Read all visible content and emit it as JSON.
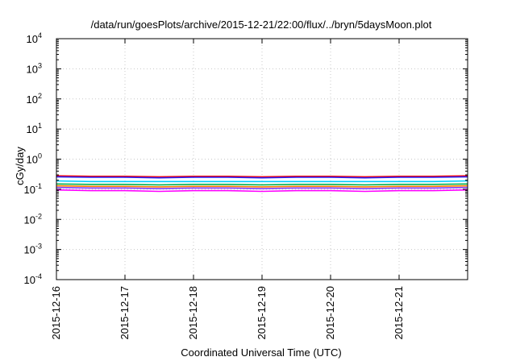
{
  "chart_data": {
    "type": "line",
    "title": "/data/run/goesPlots/archive/2015-12-21/22:00/flux/../bryn/5daysMoon.plot",
    "xlabel": "Coordinated Universal Time (UTC)",
    "ylabel": "cGy/day",
    "yscale": "log",
    "ylim": [
      0.0001,
      10000
    ],
    "xlim": [
      "2015-12-16",
      "2015-12-22"
    ],
    "grid": true,
    "legend": "none",
    "x_tick_labels": [
      "2015-12-16",
      "2015-12-17",
      "2015-12-18",
      "2015-12-19",
      "2015-12-20",
      "2015-12-21"
    ],
    "y_tick_labels": [
      {
        "base": "10",
        "exp": "-4"
      },
      {
        "base": "10",
        "exp": "-3"
      },
      {
        "base": "10",
        "exp": "-2"
      },
      {
        "base": "10",
        "exp": "-1"
      },
      {
        "base": "10",
        "exp": "0"
      },
      {
        "base": "10",
        "exp": "1"
      },
      {
        "base": "10",
        "exp": "2"
      },
      {
        "base": "10",
        "exp": "3"
      },
      {
        "base": "10",
        "exp": "4"
      }
    ],
    "x": [
      "2015-12-16",
      "2015-12-16T12:00",
      "2015-12-17",
      "2015-12-17T12:00",
      "2015-12-18",
      "2015-12-18T12:00",
      "2015-12-19",
      "2015-12-19T12:00",
      "2015-12-20",
      "2015-12-20T12:00",
      "2015-12-21",
      "2015-12-21T12:00",
      "2015-12-22"
    ],
    "series": [
      {
        "color": "#ff0000",
        "values": [
          0.28,
          0.27,
          0.27,
          0.26,
          0.27,
          0.27,
          0.26,
          0.27,
          0.27,
          0.26,
          0.27,
          0.27,
          0.28
        ]
      },
      {
        "color": "#2020ff",
        "values": [
          0.26,
          0.25,
          0.25,
          0.24,
          0.25,
          0.25,
          0.24,
          0.25,
          0.25,
          0.24,
          0.25,
          0.25,
          0.26
        ]
      },
      {
        "color": "#00ccff",
        "values": [
          0.19,
          0.18,
          0.18,
          0.18,
          0.18,
          0.18,
          0.18,
          0.18,
          0.18,
          0.18,
          0.18,
          0.18,
          0.19
        ]
      },
      {
        "color": "#00b050",
        "values": [
          0.15,
          0.145,
          0.145,
          0.14,
          0.145,
          0.145,
          0.14,
          0.145,
          0.145,
          0.14,
          0.145,
          0.145,
          0.15
        ]
      },
      {
        "color": "#ff7f00",
        "values": [
          0.13,
          0.125,
          0.125,
          0.12,
          0.125,
          0.125,
          0.12,
          0.125,
          0.125,
          0.12,
          0.125,
          0.125,
          0.13
        ]
      },
      {
        "color": "#8040ff",
        "values": [
          0.115,
          0.11,
          0.11,
          0.105,
          0.11,
          0.11,
          0.105,
          0.11,
          0.11,
          0.105,
          0.11,
          0.11,
          0.115
        ]
      },
      {
        "color": "#ff00ff",
        "values": [
          0.095,
          0.09,
          0.09,
          0.085,
          0.09,
          0.09,
          0.085,
          0.09,
          0.09,
          0.085,
          0.09,
          0.09,
          0.095
        ]
      }
    ]
  }
}
